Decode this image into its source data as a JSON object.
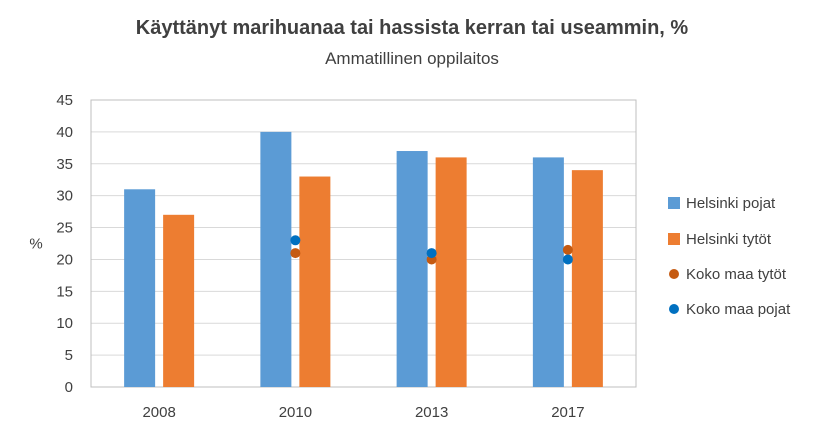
{
  "chart_data": {
    "type": "bar",
    "title": "Käyttänyt marihuanaa tai hassista kerran tai useammin, %",
    "subtitle": "Ammatillinen oppilaitos",
    "ylabel": "%",
    "xlabel": "",
    "ylim": [
      0,
      45
    ],
    "yticks": [
      0,
      5,
      10,
      15,
      20,
      25,
      30,
      35,
      40,
      45
    ],
    "grid": true,
    "legend_position": "right",
    "categories": [
      "2008",
      "2010",
      "2013",
      "2017"
    ],
    "series": [
      {
        "name": "Helsinki pojat",
        "kind": "bar",
        "color": "#5B9BD5",
        "values": [
          31,
          40,
          37,
          36
        ]
      },
      {
        "name": "Helsinki tytöt",
        "kind": "bar",
        "color": "#ED7D31",
        "values": [
          27,
          33,
          36,
          34
        ]
      },
      {
        "name": "Koko maa tytöt",
        "kind": "point",
        "color": "#C55A11",
        "values": [
          null,
          21,
          20,
          21.5
        ]
      },
      {
        "name": "Koko maa pojat",
        "kind": "point",
        "color": "#0070C0",
        "values": [
          null,
          23,
          21,
          20
        ]
      }
    ]
  }
}
